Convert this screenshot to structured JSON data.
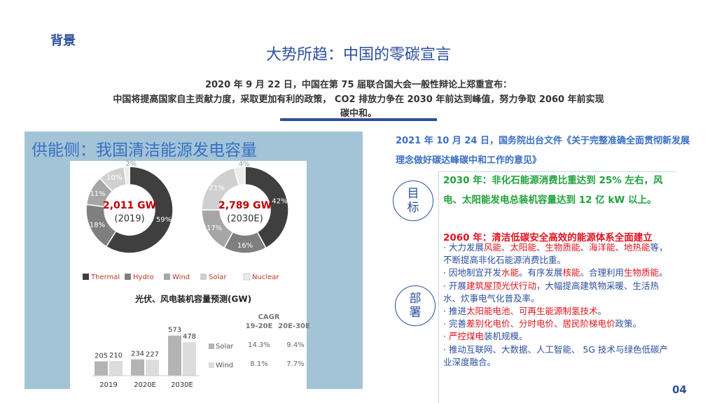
{
  "header": {
    "section": "背景",
    "title": "大势所趋：中国的零碳宣言",
    "lines": [
      "2020 年 9 月 22 日，中国在第 75 届联合国大会一般性辩论上郑重宣布：",
      "中国将提高国家自主贡献力度，采取更加有利的政策， CO2 排放力争在 2030 年前达到峰值，努力争取 2060 年前实现",
      "碳中和。"
    ]
  },
  "panel": {
    "title": "供能侧：我国清洁能源发电容量",
    "donut_legend": [
      "Thermal",
      "Hydro",
      "Wind",
      "Solar",
      "Nuclear"
    ],
    "donut_colors": [
      "#3f3f3f",
      "#7f7f7f",
      "#a6a6a6",
      "#d0d0d0",
      "#ececec"
    ],
    "donuts": [
      {
        "total": "2,011 GW",
        "year": "(2019)",
        "values": [
          59,
          18,
          11,
          10,
          2
        ],
        "value_labels": [
          "59%",
          "18%",
          "11%",
          "10%",
          "2%"
        ]
      },
      {
        "total": "2,789 GW",
        "year": "(2030E)",
        "values": [
          42,
          16,
          17,
          21,
          4
        ],
        "value_labels": [
          "42%",
          "16%",
          "17%",
          "21%",
          "4%"
        ]
      }
    ],
    "bar_chart": {
      "type": "bar",
      "title": "光伏、风电装机容量预测(GW)",
      "categories": [
        "2019",
        "2020E",
        "2030E"
      ],
      "series": [
        {
          "name": "Solar",
          "color": "#b4b4b4",
          "values": [
            205,
            234,
            573
          ]
        },
        {
          "name": "Wind",
          "color": "#dcdcdc",
          "values": [
            210,
            227,
            478
          ]
        }
      ]
    },
    "cagr": {
      "header": [
        "CAGR",
        "19-20E",
        "20E-30E"
      ],
      "rows": [
        [
          "14.3%",
          "9.4%"
        ],
        [
          "8.1%",
          "7.7%"
        ]
      ]
    }
  },
  "policy": {
    "intro": "2021 年 10 月 24 日，国务院出台文件《关于完整准确全面贯彻新发展理念做好碳达峰碳中和工作的意见》",
    "target_label": "目标",
    "target_2030": "2030 年：非化石能源消费比重达到 25% 左右，风电、太阳能发电总装机容量达到 12 亿 kW 以上。",
    "target_2060": "2060 年：清洁低碳安全高效的能源体系全面建立",
    "deploy_label": "部署",
    "bullets": [
      [
        {
          "text": "· 大力发展"
        },
        {
          "text": "风能、太阳能、生物质能、海洋能、地热能",
          "highlight": true
        },
        {
          "text": "等，不断提高非化石能源消费比重。"
        }
      ],
      [
        {
          "text": "· 因地制宜开发"
        },
        {
          "text": "水能",
          "highlight": true
        },
        {
          "text": "。有序发展"
        },
        {
          "text": "核能",
          "highlight": true
        },
        {
          "text": "。合理利用"
        },
        {
          "text": "生物质能",
          "highlight": true
        },
        {
          "text": "。"
        }
      ],
      [
        {
          "text": "· 开展"
        },
        {
          "text": "建筑屋顶光伏行动",
          "highlight": true
        },
        {
          "text": "，大幅提高建筑物采暖、生活热水、炊事电气化普及率。"
        }
      ],
      [
        {
          "text": "· 推进"
        },
        {
          "text": "太阳能电池、可再生能源制氢技术",
          "highlight": true
        },
        {
          "text": "。"
        }
      ],
      [
        {
          "text": "· 完善"
        },
        {
          "text": "差别化电价、分时电价、居民阶梯电价",
          "highlight": true
        },
        {
          "text": "政策。"
        }
      ],
      [
        {
          "text": "· "
        },
        {
          "text": "严控煤电",
          "highlight": true
        },
        {
          "text": "装机规模。"
        }
      ],
      [
        {
          "text": "· 推动互联网、大数据、人工智能、 5G 技术与绿色低碳产业深度融合。"
        }
      ]
    ]
  },
  "page_number": "04"
}
